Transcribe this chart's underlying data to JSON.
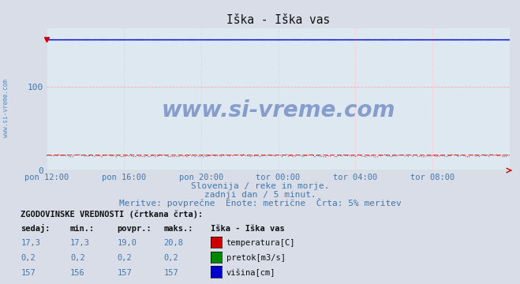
{
  "title": "Iška - Iška vas",
  "fig_bg_color": "#d8dde8",
  "plot_bg_color": "#dde8f0",
  "grid_color": "#ffaaaa",
  "xlim_max": 288,
  "ylim_max": 170,
  "yticks": [
    0,
    100
  ],
  "xtick_labels": [
    "pon 12:00",
    "pon 16:00",
    "pon 20:00",
    "tor 00:00",
    "tor 04:00",
    "tor 08:00"
  ],
  "xtick_positions": [
    0,
    48,
    96,
    144,
    192,
    240
  ],
  "watermark_text": "www.si-vreme.com",
  "watermark_color": "#3355aa",
  "watermark_alpha": 0.5,
  "subtitle1": "Slovenija / reke in morje.",
  "subtitle2": "zadnji dan / 5 minut.",
  "subtitle3": "Meritve: povprečne  Enote: metrične  Črta: 5% meritev",
  "subtitle_color": "#4477aa",
  "sidebar_text": "www.si-vreme.com",
  "sidebar_color": "#4477aa",
  "temp_color": "#cc0000",
  "pretok_color": "#008800",
  "visina_color": "#0000cc",
  "temp_line_y": 17.5,
  "temp_dashed_y": 19.0,
  "pretok_line_y": 0.2,
  "visina_line_y": 157,
  "visina_dashed_y": 157,
  "arrow_color": "#cc0000",
  "legend_title": "Iška - Iška vas",
  "legend_items": [
    {
      "label": "temperatura[C]",
      "color": "#cc0000"
    },
    {
      "label": "pretok[m3/s]",
      "color": "#008800"
    },
    {
      "label": "višina[cm]",
      "color": "#0000cc"
    }
  ],
  "table_headers": [
    "sedaj:",
    "min.:",
    "povpr.:",
    "maks.:"
  ],
  "table_rows": [
    [
      "17,3",
      "17,3",
      "19,0",
      "20,8"
    ],
    [
      "0,2",
      "0,2",
      "0,2",
      "0,2"
    ],
    [
      "157",
      "156",
      "157",
      "157"
    ]
  ],
  "table_color": "#4477aa",
  "hist_label": "ZGODOVINSKE VREDNOSTI (črtkana črta):"
}
